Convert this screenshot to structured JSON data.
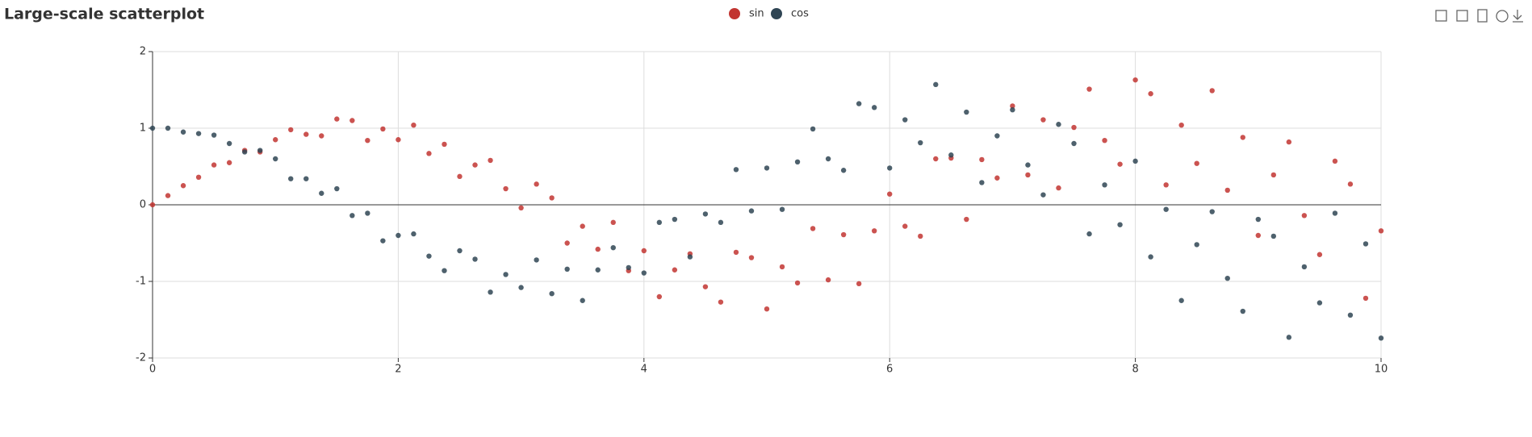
{
  "chart_data": {
    "type": "scatter",
    "title": "Large-scale scatterplot",
    "x": [
      0,
      0.125,
      0.25,
      0.375,
      0.5,
      0.625,
      0.75,
      0.875,
      1,
      1.125,
      1.25,
      1.375,
      1.5,
      1.625,
      1.75,
      1.875,
      2,
      2.125,
      2.25,
      2.375,
      2.5,
      2.625,
      2.75,
      2.875,
      3,
      3.125,
      3.25,
      3.375,
      3.5,
      3.625,
      3.75,
      3.875,
      4,
      4.125,
      4.25,
      4.375,
      4.5,
      4.625,
      4.75,
      4.875,
      5,
      5.125,
      5.25,
      5.375,
      5.5,
      5.625,
      5.75,
      5.875,
      6,
      6.125,
      6.25,
      6.375,
      6.5,
      6.625,
      6.75,
      6.875,
      7,
      7.125,
      7.25,
      7.375,
      7.5,
      7.625,
      7.75,
      7.875,
      8,
      8.125,
      8.25,
      8.375,
      8.5,
      8.625,
      8.75,
      8.875,
      9,
      9.125,
      9.25,
      9.375,
      9.5,
      9.625,
      9.75,
      9.875,
      10
    ],
    "series": [
      {
        "name": "sin",
        "color": "#c23531",
        "values": [
          0,
          0.12,
          0.25,
          0.36,
          0.52,
          0.55,
          0.71,
          0.69,
          0.85,
          0.98,
          0.92,
          0.9,
          1.12,
          1.1,
          0.84,
          0.99,
          0.85,
          1.04,
          0.67,
          0.79,
          0.37,
          0.52,
          0.58,
          0.21,
          -0.04,
          0.27,
          0.09,
          -0.5,
          -0.28,
          -0.58,
          -0.23,
          -0.86,
          -0.6,
          -1.2,
          -0.85,
          -0.64,
          -1.07,
          -1.27,
          -0.62,
          -0.69,
          -1.36,
          -0.81,
          -1.02,
          -0.31,
          -0.98,
          -0.39,
          -1.03,
          -0.34,
          0.14,
          -0.28,
          -0.41,
          0.6,
          0.61,
          -0.19,
          0.59,
          0.35,
          1.29,
          0.39,
          1.11,
          0.22,
          1.01,
          1.51,
          0.84,
          0.53,
          1.63,
          1.45,
          0.26,
          1.04,
          0.54,
          1.49,
          0.19,
          0.88,
          -0.4,
          0.39,
          0.82,
          -0.14,
          -0.65,
          0.57,
          0.27,
          -1.22,
          -0.34
        ]
      },
      {
        "name": "cos",
        "color": "#2f4554",
        "values": [
          1,
          1,
          0.95,
          0.93,
          0.91,
          0.8,
          0.69,
          0.71,
          0.6,
          0.34,
          0.34,
          0.15,
          0.21,
          -0.14,
          -0.11,
          -0.47,
          -0.4,
          -0.38,
          -0.67,
          -0.86,
          -0.6,
          -0.71,
          -1.14,
          -0.91,
          -1.08,
          -0.72,
          -1.16,
          -0.84,
          -1.25,
          -0.85,
          -0.56,
          -0.82,
          -0.89,
          -0.23,
          -0.19,
          -0.68,
          -0.12,
          -0.23,
          0.46,
          -0.08,
          0.48,
          -0.06,
          0.56,
          0.99,
          0.6,
          0.45,
          1.32,
          1.27,
          0.48,
          1.11,
          0.81,
          1.57,
          0.65,
          1.21,
          0.29,
          0.9,
          1.24,
          0.52,
          0.13,
          1.05,
          0.8,
          -0.38,
          0.26,
          -0.26,
          0.57,
          -0.68,
          -0.06,
          -1.25,
          -0.52,
          -0.09,
          -0.96,
          -1.39,
          -0.19,
          -0.41,
          -1.73,
          -0.81,
          -1.28,
          -0.11,
          -1.44,
          -0.51,
          -1.74
        ]
      }
    ],
    "xlim": [
      0,
      10
    ],
    "xticks": [
      0,
      2,
      4,
      6,
      8,
      10
    ],
    "ylim": [
      -2,
      2
    ],
    "yticks": [
      -2,
      -1,
      0,
      1,
      2
    ],
    "grid": true
  }
}
